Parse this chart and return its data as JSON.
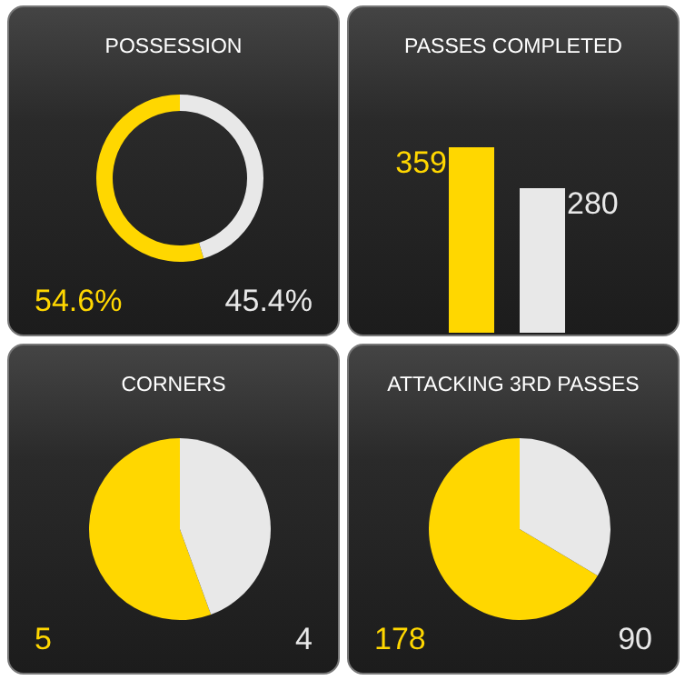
{
  "chart_data": [
    {
      "type": "donut",
      "title": "POSSESSION",
      "categories": [
        null,
        null
      ],
      "values": [
        54.6,
        45.4
      ],
      "colors": [
        "#ffd700",
        "#e8e8e8"
      ],
      "value_labels": [
        "54.6%",
        "45.4%"
      ]
    },
    {
      "type": "bar",
      "title": "PASSES COMPLETED",
      "categories": [
        null,
        null
      ],
      "values": [
        359,
        280
      ],
      "colors": [
        "#ffd700",
        "#e8e8e8"
      ],
      "data_labels": true
    },
    {
      "type": "pie",
      "title": "CORNERS",
      "categories": [
        null,
        null
      ],
      "values": [
        5,
        4
      ],
      "colors": [
        "#ffd700",
        "#e8e8e8"
      ],
      "data_labels": true
    },
    {
      "type": "pie",
      "title": "ATTACKING 3RD PASSES",
      "categories": [
        null,
        null
      ],
      "values": [
        178,
        90
      ],
      "colors": [
        "#ffd700",
        "#e8e8e8"
      ],
      "data_labels": true
    }
  ]
}
